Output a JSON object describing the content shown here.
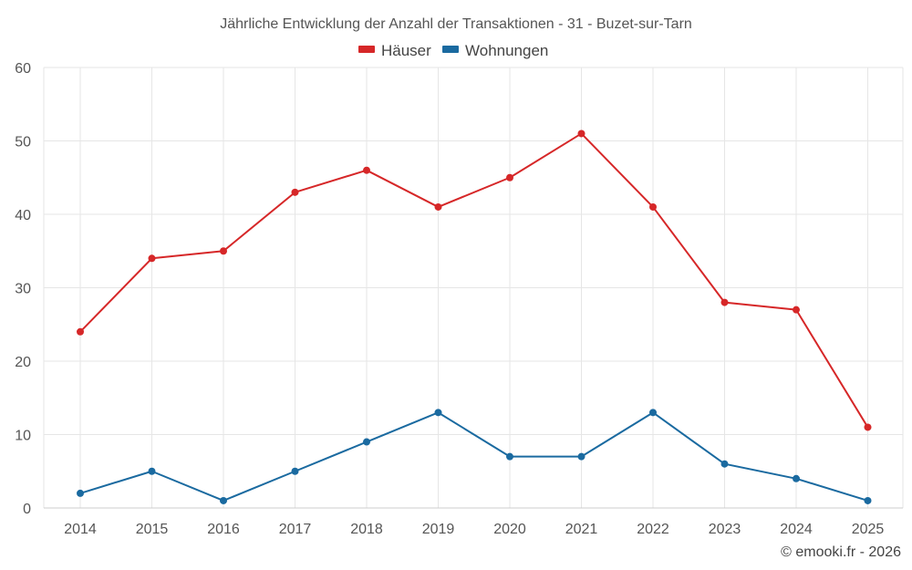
{
  "chart_data": {
    "type": "line",
    "title": "Jährliche Entwicklung der Anzahl der Transaktionen - 31 - Buzet-sur-Tarn",
    "categories": [
      "2014",
      "2015",
      "2016",
      "2017",
      "2018",
      "2019",
      "2020",
      "2021",
      "2022",
      "2023",
      "2024",
      "2025"
    ],
    "ylim": [
      0,
      60
    ],
    "yticks": [
      0,
      10,
      20,
      30,
      40,
      50,
      60
    ],
    "grid": true,
    "legend_position": "top-center",
    "series": [
      {
        "name": "Häuser",
        "color": "#d62728",
        "values": [
          24,
          34,
          35,
          43,
          46,
          41,
          45,
          51,
          41,
          28,
          27,
          11
        ]
      },
      {
        "name": "Wohnungen",
        "color": "#1a6aa0",
        "values": [
          2,
          5,
          1,
          5,
          9,
          13,
          7,
          7,
          13,
          6,
          4,
          1
        ]
      }
    ],
    "xlabel": "",
    "ylabel": ""
  },
  "credit": "© emooki.fr - 2026"
}
